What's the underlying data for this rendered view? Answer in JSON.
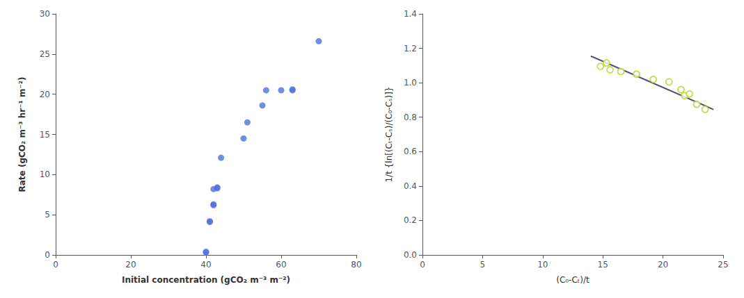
{
  "chart_data": [
    {
      "type": "scatter",
      "x": [
        40,
        40,
        41,
        41,
        42,
        42,
        42,
        43,
        43,
        44,
        50,
        51,
        55,
        56,
        60,
        63,
        63,
        70
      ],
      "values": [
        0.3,
        0.4,
        4.1,
        4.2,
        6.2,
        6.3,
        8.2,
        8.3,
        8.4,
        12.1,
        14.5,
        16.5,
        18.6,
        20.5,
        20.5,
        20.5,
        20.6,
        26.6
      ],
      "marker": "circle",
      "xlabel": "Initial concentration (gCO₂ m⁻³ m⁻²)",
      "ylabel": "Rate (gCO₂ m⁻³ hr⁻¹ m⁻²)",
      "xlim": [
        0,
        80
      ],
      "ylim": [
        0,
        30
      ],
      "xticks": [
        0,
        20,
        40,
        60,
        80
      ],
      "yticks": [
        0,
        5,
        10,
        15,
        20,
        25,
        30
      ],
      "grid": false
    },
    {
      "type": "scatter",
      "series": [
        {
          "type": "scatter",
          "marker": "emptyCircle",
          "x": [
            14.8,
            15.3,
            15.6,
            16.5,
            17.8,
            19.2,
            20.5,
            21.5,
            21.8,
            22.2,
            22.8,
            23.5
          ],
          "values": [
            1.095,
            1.115,
            1.075,
            1.065,
            1.05,
            1.02,
            1.005,
            0.96,
            0.925,
            0.935,
            0.875,
            0.845
          ]
        },
        {
          "type": "line",
          "line_style": "solid",
          "x": [
            14.0,
            24.2
          ],
          "values": [
            1.155,
            0.845
          ]
        }
      ],
      "xlabel": "(C₀-Cₜ)/t",
      "ylabel": "1/t {ln[(Cₜ-Cₛ)/(C₀-Cₛ)]}",
      "xlim": [
        0,
        25
      ],
      "ylim": [
        0.0,
        1.4
      ],
      "xticks": [
        0,
        5,
        10,
        15,
        20,
        25
      ],
      "yticks": [
        {
          "value": 0.0,
          "label": "0.0"
        },
        0.2,
        0.4,
        0.6,
        0.8,
        {
          "value": 1.0,
          "label": "1.0"
        },
        1.2,
        1.4
      ],
      "grid": false
    }
  ]
}
